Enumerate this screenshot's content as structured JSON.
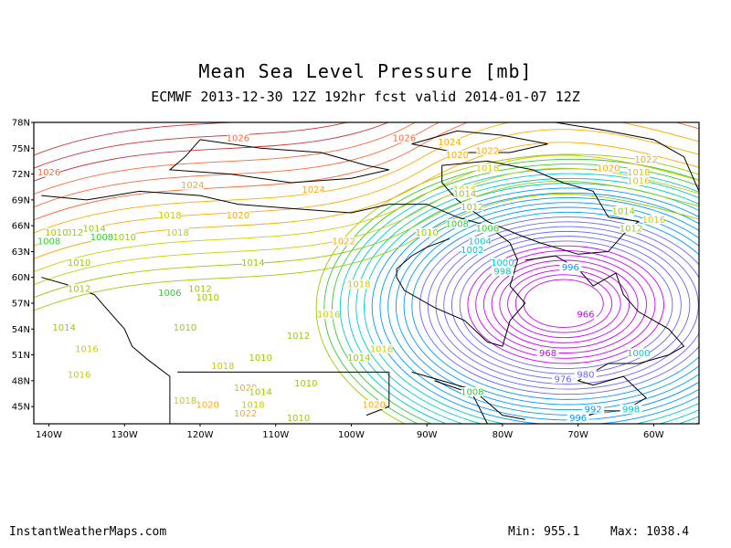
{
  "title": "Mean Sea Level Pressure [mb]",
  "subtitle": "ECMWF 2013-12-30 12Z 192hr fcst valid 2014-01-07 12Z",
  "footer": {
    "site": "InstantWeatherMaps.com",
    "min_label": "Min:",
    "min_value": "955.1",
    "max_label": "Max:",
    "max_value": "1038.4"
  },
  "chart_data": {
    "type": "contour map",
    "variable": "Mean Sea Level Pressure [mb]",
    "lat_ticks": [
      "78N",
      "75N",
      "72N",
      "69N",
      "66N",
      "63N",
      "60N",
      "57N",
      "54N",
      "51N",
      "48N",
      "45N"
    ],
    "lon_ticks": [
      "140W",
      "130W",
      "120W",
      "110W",
      "100W",
      "90W",
      "80W",
      "70W",
      "60W"
    ],
    "lat_range": [
      43,
      78
    ],
    "lon_range": [
      -142,
      -54
    ],
    "low_center": {
      "lat": 57,
      "lon": -72,
      "min": 955.1
    },
    "contour_labels": [
      {
        "text": "1026",
        "lat": 76,
        "lon": -115,
        "value": 1026
      },
      {
        "text": "1026",
        "lat": 76,
        "lon": -93,
        "value": 1026
      },
      {
        "text": "1024",
        "lat": 75.5,
        "lon": -87,
        "value": 1024
      },
      {
        "text": "1022",
        "lat": 74.5,
        "lon": -82,
        "value": 1022
      },
      {
        "text": "1020",
        "lat": 74,
        "lon": -86,
        "value": 1020
      },
      {
        "text": "1018",
        "lat": 72.5,
        "lon": -82,
        "value": 1018
      },
      {
        "text": "1022",
        "lat": 73.5,
        "lon": -61,
        "value": 1022
      },
      {
        "text": "1020",
        "lat": 72.5,
        "lon": -66,
        "value": 1020
      },
      {
        "text": "1018",
        "lat": 72,
        "lon": -62,
        "value": 1018
      },
      {
        "text": "1016",
        "lat": 71,
        "lon": -62,
        "value": 1016
      },
      {
        "text": "1026",
        "lat": 72,
        "lon": -140,
        "value": 1026
      },
      {
        "text": "1024",
        "lat": 70.5,
        "lon": -121,
        "value": 1024
      },
      {
        "text": "1024",
        "lat": 70,
        "lon": -105,
        "value": 1024
      },
      {
        "text": "1016",
        "lat": 70,
        "lon": -85,
        "value": 1016
      },
      {
        "text": "1014",
        "lat": 69.5,
        "lon": -85,
        "value": 1014
      },
      {
        "text": "1012",
        "lat": 68,
        "lon": -84,
        "value": 1012
      },
      {
        "text": "1014",
        "lat": 67.5,
        "lon": -64,
        "value": 1014
      },
      {
        "text": "1016",
        "lat": 66.5,
        "lon": -60,
        "value": 1016
      },
      {
        "text": "1012",
        "lat": 65.5,
        "lon": -63,
        "value": 1012
      },
      {
        "text": "1018",
        "lat": 67,
        "lon": -124,
        "value": 1018
      },
      {
        "text": "1020",
        "lat": 67,
        "lon": -115,
        "value": 1020
      },
      {
        "text": "1014",
        "lat": 65.5,
        "lon": -134,
        "value": 1014
      },
      {
        "text": "1018",
        "lat": 65,
        "lon": -123,
        "value": 1018
      },
      {
        "text": "1012",
        "lat": 65,
        "lon": -137,
        "value": 1012
      },
      {
        "text": "1010",
        "lat": 65,
        "lon": -139,
        "value": 1010
      },
      {
        "text": "1008",
        "lat": 64.5,
        "lon": -133,
        "value": 1008
      },
      {
        "text": "1010",
        "lat": 64.5,
        "lon": -130,
        "value": 1010
      },
      {
        "text": "1008",
        "lat": 64,
        "lon": -140,
        "value": 1008
      },
      {
        "text": "1022",
        "lat": 64,
        "lon": -101,
        "value": 1022
      },
      {
        "text": "1010",
        "lat": 65,
        "lon": -90,
        "value": 1010
      },
      {
        "text": "1008",
        "lat": 66,
        "lon": -86,
        "value": 1008
      },
      {
        "text": "1006",
        "lat": 65.5,
        "lon": -82,
        "value": 1006
      },
      {
        "text": "1004",
        "lat": 64,
        "lon": -83,
        "value": 1004
      },
      {
        "text": "1002",
        "lat": 63,
        "lon": -84,
        "value": 1002
      },
      {
        "text": "1000",
        "lat": 61.5,
        "lon": -80,
        "value": 1000
      },
      {
        "text": "998",
        "lat": 60.5,
        "lon": -80,
        "value": 998
      },
      {
        "text": "996",
        "lat": 61,
        "lon": -71,
        "value": 996
      },
      {
        "text": "1010",
        "lat": 61.5,
        "lon": -136,
        "value": 1010
      },
      {
        "text": "1014",
        "lat": 61.5,
        "lon": -113,
        "value": 1014
      },
      {
        "text": "1012",
        "lat": 58.5,
        "lon": -136,
        "value": 1012
      },
      {
        "text": "1012",
        "lat": 58.5,
        "lon": -120,
        "value": 1012
      },
      {
        "text": "1006",
        "lat": 58,
        "lon": -124,
        "value": 1006
      },
      {
        "text": "1010",
        "lat": 57.5,
        "lon": -119,
        "value": 1010
      },
      {
        "text": "1018",
        "lat": 59,
        "lon": -99,
        "value": 1018
      },
      {
        "text": "1016",
        "lat": 55.5,
        "lon": -103,
        "value": 1016
      },
      {
        "text": "1014",
        "lat": 54,
        "lon": -138,
        "value": 1014
      },
      {
        "text": "1010",
        "lat": 54,
        "lon": -122,
        "value": 1010
      },
      {
        "text": "1012",
        "lat": 53,
        "lon": -107,
        "value": 1012
      },
      {
        "text": "1016",
        "lat": 51.5,
        "lon": -135,
        "value": 1016
      },
      {
        "text": "1016",
        "lat": 51.5,
        "lon": -96,
        "value": 1016
      },
      {
        "text": "1014",
        "lat": 50.5,
        "lon": -99,
        "value": 1014
      },
      {
        "text": "1010",
        "lat": 50.5,
        "lon": -112,
        "value": 1010
      },
      {
        "text": "1018",
        "lat": 49.5,
        "lon": -117,
        "value": 1018
      },
      {
        "text": "1016",
        "lat": 48.5,
        "lon": -136,
        "value": 1016
      },
      {
        "text": "1010",
        "lat": 47.5,
        "lon": -106,
        "value": 1010
      },
      {
        "text": "1020",
        "lat": 47,
        "lon": -114,
        "value": 1020
      },
      {
        "text": "1014",
        "lat": 46.5,
        "lon": -112,
        "value": 1014
      },
      {
        "text": "1018",
        "lat": 45.5,
        "lon": -122,
        "value": 1018
      },
      {
        "text": "1020",
        "lat": 45,
        "lon": -119,
        "value": 1020
      },
      {
        "text": "1018",
        "lat": 45,
        "lon": -113,
        "value": 1018
      },
      {
        "text": "1022",
        "lat": 44,
        "lon": -114,
        "value": 1022
      },
      {
        "text": "1020",
        "lat": 45,
        "lon": -97,
        "value": 1020
      },
      {
        "text": "1010",
        "lat": 43.5,
        "lon": -107,
        "value": 1010
      },
      {
        "text": "1008",
        "lat": 46.5,
        "lon": -84,
        "value": 1008
      },
      {
        "text": "1000",
        "lat": 51,
        "lon": -62,
        "value": 1000
      },
      {
        "text": "966",
        "lat": 55.5,
        "lon": -69,
        "value": 966
      },
      {
        "text": "968",
        "lat": 51,
        "lon": -74,
        "value": 968
      },
      {
        "text": "976",
        "lat": 48,
        "lon": -72,
        "value": 976
      },
      {
        "text": "980",
        "lat": 48.5,
        "lon": -69,
        "value": 980
      },
      {
        "text": "998",
        "lat": 44.5,
        "lon": -63,
        "value": 998
      },
      {
        "text": "996",
        "lat": 43.5,
        "lon": -70,
        "value": 996
      },
      {
        "text": "992",
        "lat": 44.5,
        "lon": -68,
        "value": 992
      }
    ]
  }
}
